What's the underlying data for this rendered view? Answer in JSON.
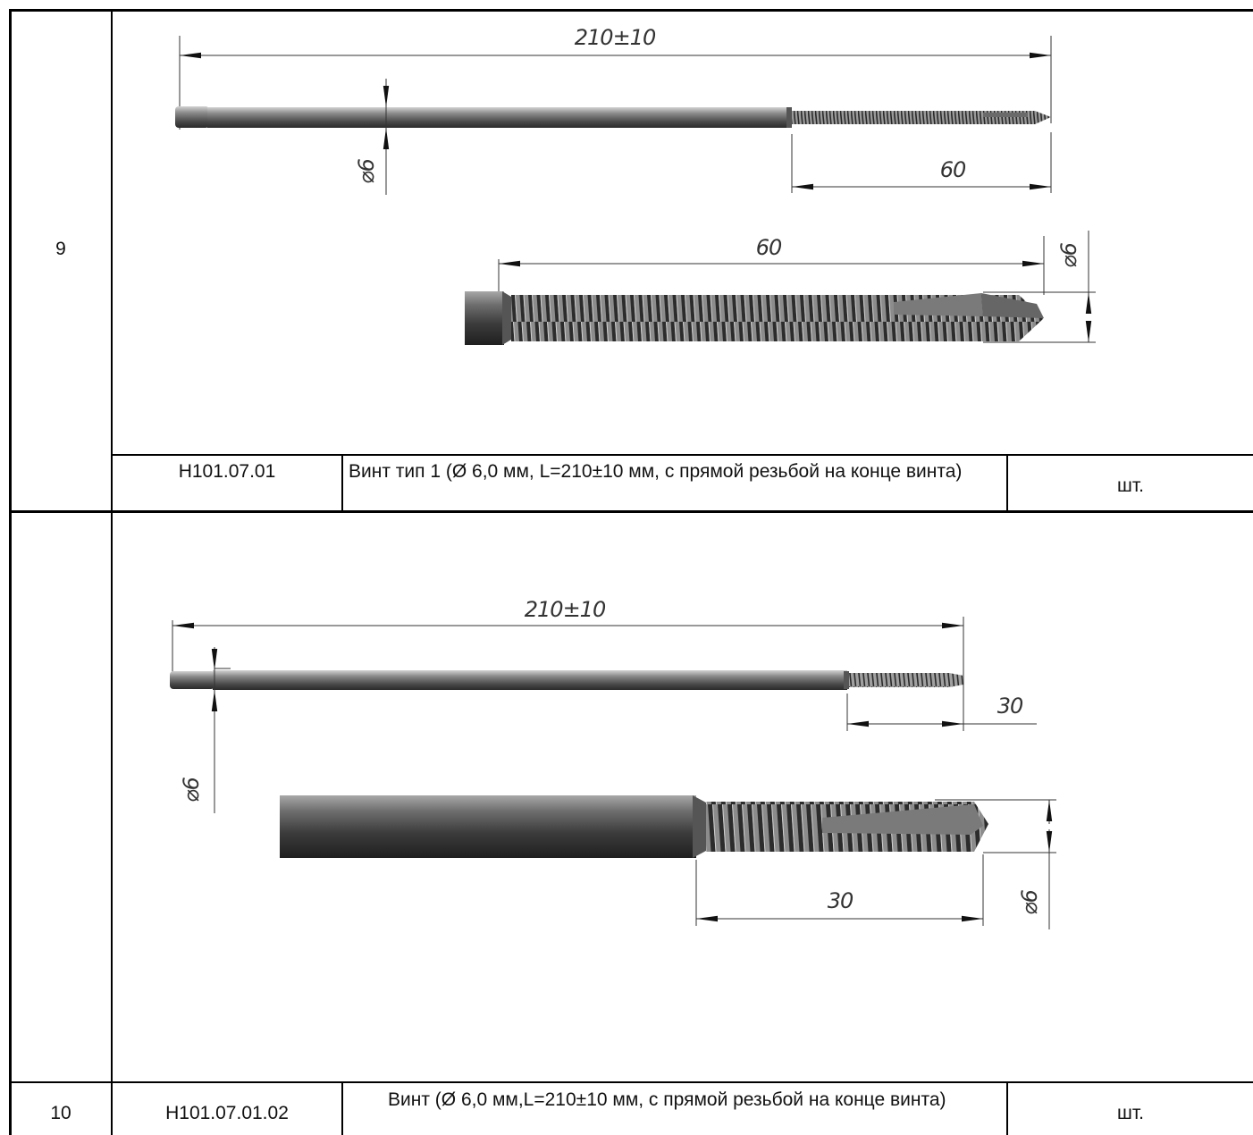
{
  "rows": [
    {
      "number": "9",
      "code": "Н101.07.01",
      "description": "Винт тип 1 (Ø 6,0 мм, L=210±10  мм, с прямой резьбой на конце винта)",
      "unit": "шт.",
      "drawing": {
        "overall_length": "210±10",
        "thread_length": "60",
        "detail_length": "60",
        "shaft_diameter": "⌀6",
        "detail_diameter": "⌀6"
      }
    },
    {
      "number": "10",
      "code": "Н101.07.01.02",
      "description": "Винт (Ø 6,0 мм,L=210±10  мм, с прямой резьбой на конце винта)",
      "unit": "шт.",
      "drawing": {
        "overall_length": "210±10",
        "thread_length": "30",
        "detail_length": "30",
        "shaft_diameter": "⌀6",
        "detail_diameter": "⌀6"
      }
    }
  ]
}
